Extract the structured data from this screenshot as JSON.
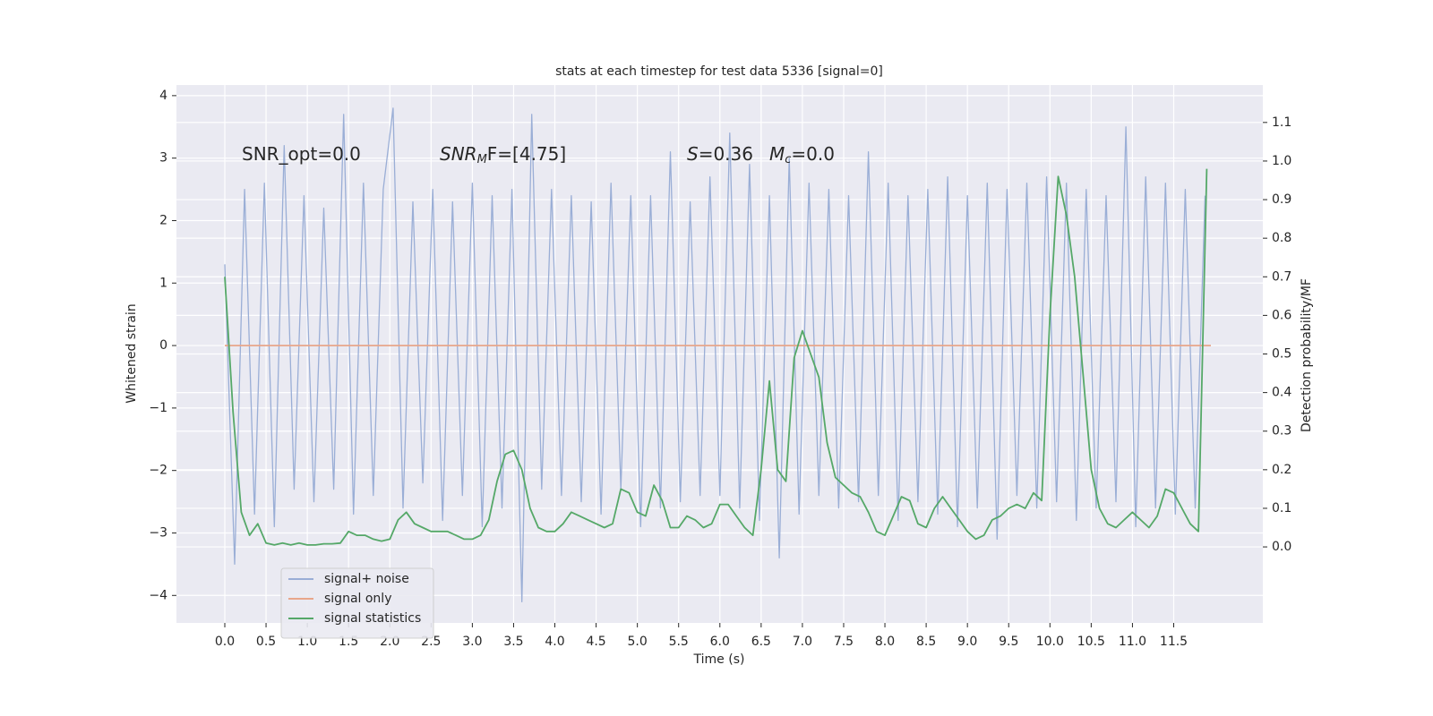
{
  "chart_data": {
    "type": "line",
    "title": "stats at each timestep for test data 5336 [signal=0]",
    "xlabel": "Time (s)",
    "ylabel": "Whitened strain",
    "y2label": "Detection probability/MF",
    "xlim": [
      -0.586,
      12.58
    ],
    "ylim": [
      -4.44,
      4.17
    ],
    "y2lim": [
      -0.197,
      1.197
    ],
    "xticks": [
      {
        "value": 0,
        "label": "0.0"
      },
      0.5,
      {
        "value": 1,
        "label": "1.0"
      },
      1.5,
      {
        "value": 2,
        "label": "2.0"
      },
      2.5,
      {
        "value": 3,
        "label": "3.0"
      },
      3.5,
      {
        "value": 4,
        "label": "4.0"
      },
      4.5,
      {
        "value": 5,
        "label": "5.0"
      },
      5.5,
      {
        "value": 6,
        "label": "6.0"
      },
      6.5,
      {
        "value": 7,
        "label": "7.0"
      },
      7.5,
      {
        "value": 8,
        "label": "8.0"
      },
      8.5,
      {
        "value": 9,
        "label": "9.0"
      },
      9.5,
      {
        "value": 10,
        "label": "10.0"
      },
      10.5,
      {
        "value": 11,
        "label": "11.0"
      },
      11.5
    ],
    "yticks": [
      {
        "value": -4,
        "label": "−4"
      },
      {
        "value": -3,
        "label": "−3"
      },
      {
        "value": -2,
        "label": "−2"
      },
      {
        "value": -1,
        "label": "−1"
      },
      0,
      1,
      2,
      3,
      4
    ],
    "y2ticks": [
      {
        "value": 0,
        "label": "0.0"
      },
      0.1,
      0.2,
      0.3,
      0.4,
      0.5,
      0.6,
      0.7,
      0.8,
      0.9,
      {
        "value": 1,
        "label": "1.0"
      },
      1.1
    ],
    "grid": true,
    "legend": "lower left",
    "annotations": [
      {
        "text": "SNR_opt=0.0"
      },
      {
        "text": "SNR",
        "sub": "M",
        "after": "F=[4.75]"
      },
      {
        "text": "S",
        "after": "=0.36"
      },
      {
        "text": "M",
        "sub": "c",
        "after": "=0.0"
      }
    ],
    "series": [
      {
        "name": "signal+ noise",
        "color": "#9aaed6",
        "x": [
          0,
          0.12,
          0.24,
          0.36,
          0.48,
          0.6,
          0.72,
          0.84,
          0.96,
          1.08,
          1.2,
          1.32,
          1.44,
          1.56,
          1.68,
          1.8,
          1.92,
          2.04,
          2.16,
          2.28,
          2.4,
          2.52,
          2.64,
          2.76,
          2.88,
          3.0,
          3.12,
          3.24,
          3.36,
          3.48,
          3.6,
          3.72,
          3.84,
          3.96,
          4.08,
          4.2,
          4.32,
          4.44,
          4.56,
          4.68,
          4.8,
          4.92,
          5.04,
          5.16,
          5.28,
          5.4,
          5.52,
          5.64,
          5.76,
          5.88,
          6.0,
          6.12,
          6.24,
          6.36,
          6.48,
          6.6,
          6.72,
          6.84,
          6.96,
          7.08,
          7.2,
          7.32,
          7.44,
          7.56,
          7.68,
          7.8,
          7.92,
          8.04,
          8.16,
          8.28,
          8.4,
          8.52,
          8.64,
          8.76,
          8.88,
          9.0,
          9.12,
          9.24,
          9.36,
          9.48,
          9.6,
          9.72,
          9.84,
          9.96,
          10.08,
          10.2,
          10.32,
          10.44,
          10.56,
          10.68,
          10.8,
          10.92,
          11.04,
          11.16,
          11.28,
          11.4,
          11.52,
          11.64,
          11.76,
          11.88
        ],
        "values": [
          1.3,
          -3.5,
          2.5,
          -2.7,
          2.6,
          -2.9,
          3.2,
          -2.3,
          2.4,
          -2.5,
          2.2,
          -2.3,
          3.7,
          -2.7,
          2.6,
          -2.4,
          2.5,
          3.8,
          -2.6,
          2.3,
          -2.2,
          2.5,
          -2.8,
          2.3,
          -2.4,
          2.6,
          -2.9,
          2.4,
          -2.6,
          2.5,
          -4.1,
          3.7,
          -2.3,
          2.5,
          -2.4,
          2.4,
          -2.5,
          2.3,
          -2.7,
          2.6,
          -2.3,
          2.4,
          -2.9,
          2.4,
          -2.6,
          3.1,
          -2.5,
          2.3,
          -2.4,
          2.7,
          -2.4,
          3.4,
          -2.6,
          2.9,
          -2.8,
          2.4,
          -3.4,
          3.0,
          -2.7,
          2.6,
          -2.4,
          2.5,
          -2.6,
          2.4,
          -2.5,
          3.1,
          -2.4,
          2.6,
          -2.8,
          2.4,
          -2.5,
          2.5,
          -2.7,
          2.7,
          -2.9,
          2.4,
          -2.6,
          2.6,
          -3.1,
          2.5,
          -2.4,
          2.6,
          -2.6,
          2.7,
          -2.5,
          2.6,
          -2.8,
          2.5,
          -2.6,
          2.4,
          -2.5,
          3.5,
          -2.9,
          2.7,
          -2.6,
          2.6,
          -2.7,
          2.5,
          -2.6,
          2.4
        ]
      },
      {
        "name": "signal only",
        "color": "#e8a68a",
        "x": [
          0,
          11.95
        ],
        "values": [
          0,
          0
        ]
      },
      {
        "name": "signal statistics",
        "color": "#55a868",
        "axis": "y2",
        "x": [
          0,
          0.1,
          0.2,
          0.3,
          0.4,
          0.5,
          0.6,
          0.7,
          0.8,
          0.9,
          1.0,
          1.1,
          1.2,
          1.3,
          1.4,
          1.5,
          1.6,
          1.7,
          1.8,
          1.9,
          2.0,
          2.1,
          2.2,
          2.3,
          2.4,
          2.5,
          2.6,
          2.7,
          2.8,
          2.9,
          3.0,
          3.1,
          3.2,
          3.3,
          3.4,
          3.5,
          3.6,
          3.7,
          3.8,
          3.9,
          4.0,
          4.1,
          4.2,
          4.3,
          4.4,
          4.5,
          4.6,
          4.7,
          4.8,
          4.9,
          5.0,
          5.1,
          5.2,
          5.3,
          5.4,
          5.5,
          5.6,
          5.7,
          5.8,
          5.9,
          6.0,
          6.1,
          6.2,
          6.3,
          6.4,
          6.5,
          6.6,
          6.7,
          6.8,
          6.9,
          7.0,
          7.1,
          7.2,
          7.3,
          7.4,
          7.5,
          7.6,
          7.7,
          7.8,
          7.9,
          8.0,
          8.1,
          8.2,
          8.3,
          8.4,
          8.5,
          8.6,
          8.7,
          8.8,
          8.9,
          9.0,
          9.1,
          9.2,
          9.3,
          9.4,
          9.5,
          9.6,
          9.7,
          9.8,
          9.9,
          10.0,
          10.1,
          10.2,
          10.3,
          10.4,
          10.5,
          10.6,
          10.7,
          10.8,
          10.9,
          11.0,
          11.1,
          11.2,
          11.3,
          11.4,
          11.5,
          11.6,
          11.7,
          11.8,
          11.9
        ],
        "values": [
          0.7,
          0.35,
          0.09,
          0.03,
          0.06,
          0.01,
          0.005,
          0.01,
          0.005,
          0.01,
          0.005,
          0.005,
          0.008,
          0.008,
          0.01,
          0.04,
          0.03,
          0.03,
          0.02,
          0.015,
          0.02,
          0.07,
          0.09,
          0.06,
          0.05,
          0.04,
          0.04,
          0.04,
          0.03,
          0.02,
          0.02,
          0.03,
          0.07,
          0.17,
          0.24,
          0.25,
          0.2,
          0.1,
          0.05,
          0.04,
          0.04,
          0.06,
          0.09,
          0.08,
          0.07,
          0.06,
          0.05,
          0.06,
          0.15,
          0.14,
          0.09,
          0.08,
          0.16,
          0.12,
          0.05,
          0.05,
          0.08,
          0.07,
          0.05,
          0.06,
          0.11,
          0.11,
          0.08,
          0.05,
          0.03,
          0.2,
          0.43,
          0.2,
          0.17,
          0.49,
          0.56,
          0.5,
          0.44,
          0.27,
          0.18,
          0.16,
          0.14,
          0.13,
          0.09,
          0.04,
          0.03,
          0.08,
          0.13,
          0.12,
          0.06,
          0.05,
          0.1,
          0.13,
          0.1,
          0.07,
          0.04,
          0.02,
          0.03,
          0.07,
          0.08,
          0.1,
          0.11,
          0.1,
          0.14,
          0.12,
          0.6,
          0.96,
          0.86,
          0.7,
          0.45,
          0.2,
          0.1,
          0.06,
          0.05,
          0.07,
          0.09,
          0.07,
          0.05,
          0.08,
          0.15,
          0.14,
          0.1,
          0.06,
          0.04,
          0.98
        ]
      }
    ]
  }
}
